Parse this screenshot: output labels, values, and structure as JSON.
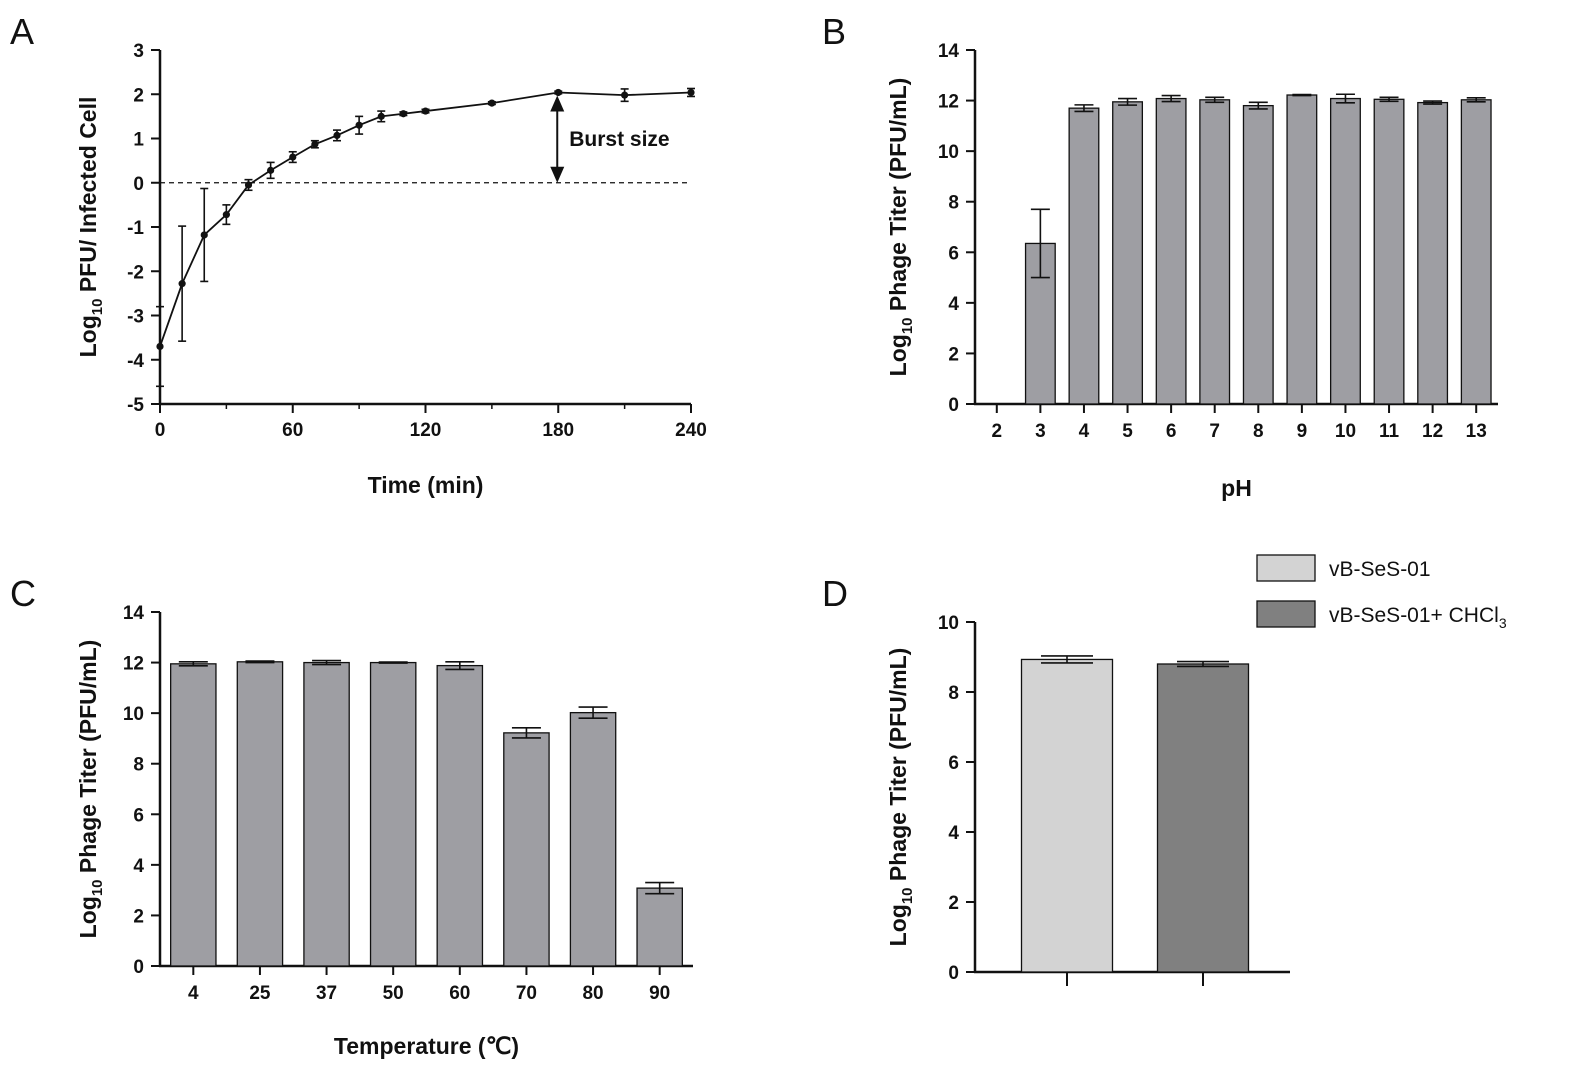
{
  "chart_data": [
    {
      "panel": "A",
      "type": "line",
      "xlabel": "Time (min)",
      "ylabel_main": "Log",
      "ylabel_sub": "10",
      "ylabel_rest": " PFU/ Infected Cell",
      "xlim": [
        0,
        240
      ],
      "ylim": [
        -5,
        3
      ],
      "xticks": [
        0,
        60,
        120,
        180,
        240
      ],
      "yticks": [
        -5,
        -4,
        -3,
        -2,
        -1,
        0,
        1,
        2,
        3
      ],
      "x": [
        0,
        10,
        20,
        30,
        40,
        50,
        60,
        70,
        80,
        90,
        100,
        110,
        120,
        150,
        180,
        210,
        240
      ],
      "y": [
        -3.7,
        -2.28,
        -1.18,
        -0.72,
        -0.05,
        0.28,
        0.58,
        0.87,
        1.07,
        1.3,
        1.5,
        1.56,
        1.62,
        1.8,
        2.04,
        1.98,
        2.04
      ],
      "err": [
        0.9,
        1.3,
        1.05,
        0.22,
        0.12,
        0.18,
        0.12,
        0.08,
        0.12,
        0.2,
        0.12,
        0.04,
        0.04,
        0.03,
        0.03,
        0.14,
        0.09
      ],
      "reference_line": 0,
      "annotation": "Burst size",
      "annotation_x": 180
    },
    {
      "panel": "B",
      "type": "bar",
      "xlabel": "pH",
      "ylabel_main": "Log",
      "ylabel_sub": "10",
      "ylabel_rest": " Phage Titer (PFU/mL)",
      "ylim": [
        0,
        14
      ],
      "yticks": [
        0,
        2,
        4,
        6,
        8,
        10,
        12,
        14
      ],
      "categories": [
        "2",
        "3",
        "4",
        "5",
        "6",
        "7",
        "8",
        "9",
        "10",
        "11",
        "12",
        "13"
      ],
      "values": [
        0,
        6.35,
        11.7,
        11.95,
        12.08,
        12.03,
        11.8,
        12.22,
        12.08,
        12.05,
        11.92,
        12.03
      ],
      "err": [
        0,
        1.35,
        0.13,
        0.13,
        0.12,
        0.1,
        0.13,
        0.02,
        0.17,
        0.08,
        0.06,
        0.08
      ],
      "bar_color": "#9e9ea3"
    },
    {
      "panel": "C",
      "type": "bar",
      "xlabel": "Temperature (℃)",
      "ylabel_main": "Log",
      "ylabel_sub": "10",
      "ylabel_rest": " Phage Titer (PFU/mL)",
      "ylim": [
        0,
        14
      ],
      "yticks": [
        0,
        2,
        4,
        6,
        8,
        10,
        12,
        14
      ],
      "categories": [
        "4",
        "25",
        "37",
        "50",
        "60",
        "70",
        "80",
        "90"
      ],
      "values": [
        11.95,
        12.03,
        12.0,
        12.0,
        11.88,
        9.22,
        10.02,
        3.08
      ],
      "err": [
        0.08,
        0.03,
        0.08,
        0.02,
        0.15,
        0.2,
        0.22,
        0.22
      ],
      "bar_color": "#9e9ea3"
    },
    {
      "panel": "D",
      "type": "bar",
      "xlabel": "",
      "ylabel_main": "Log",
      "ylabel_sub": "10",
      "ylabel_rest": " Phage Titer (PFU/mL)",
      "ylim": [
        0,
        10
      ],
      "yticks": [
        0,
        2,
        4,
        6,
        8,
        10
      ],
      "categories": [
        "vB-SeS-01",
        "vB-SeS-01+ CHCl3"
      ],
      "values": [
        8.93,
        8.8
      ],
      "err": [
        0.1,
        0.07
      ],
      "colors": [
        "#d3d3d3",
        "#808080"
      ],
      "legend": [
        {
          "main": "vB-SeS-01",
          "sub": ""
        },
        {
          "main": "vB-SeS-01+ CHCl",
          "sub": "3"
        }
      ]
    }
  ]
}
